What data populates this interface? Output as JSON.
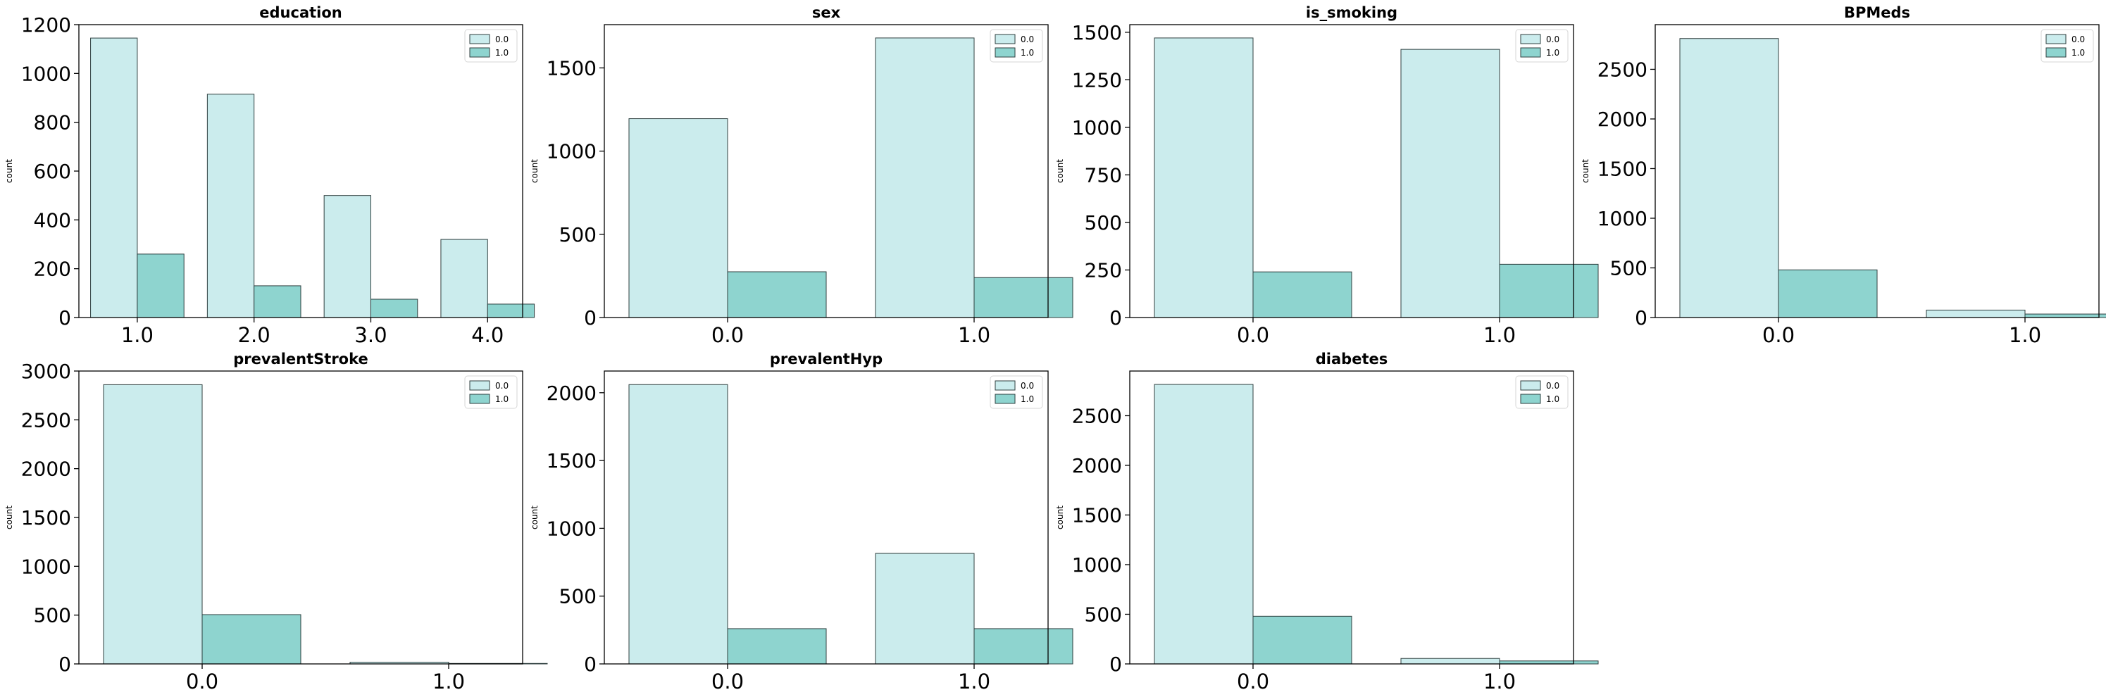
{
  "figure": {
    "colors": {
      "series_0": "#cbeced",
      "series_1": "#8ed4cf",
      "edge": "#2f3f3f"
    }
  },
  "chart_data": [
    {
      "type": "bar",
      "title": "education",
      "ylabel": "count",
      "categories": [
        "1.0",
        "2.0",
        "3.0",
        "4.0"
      ],
      "series": [
        {
          "name": "0.0",
          "values": [
            1145,
            915,
            500,
            320
          ]
        },
        {
          "name": "1.0",
          "values": [
            260,
            130,
            75,
            55
          ]
        }
      ],
      "ylim": [
        0,
        1200
      ],
      "yticks": [
        0,
        200,
        400,
        600,
        800,
        1000,
        1200
      ],
      "legend": "top-right",
      "grid": false
    },
    {
      "type": "bar",
      "title": "sex",
      "ylabel": "count",
      "categories": [
        "0.0",
        "1.0"
      ],
      "series": [
        {
          "name": "0.0",
          "values": [
            1195,
            1680
          ]
        },
        {
          "name": "1.0",
          "values": [
            275,
            240
          ]
        }
      ],
      "ylim": [
        0,
        1760
      ],
      "yticks": [
        0,
        500,
        1000,
        1500
      ],
      "legend": "top-right",
      "grid": false
    },
    {
      "type": "bar",
      "title": "is_smoking",
      "ylabel": "count",
      "categories": [
        "0.0",
        "1.0"
      ],
      "series": [
        {
          "name": "0.0",
          "values": [
            1470,
            1410
          ]
        },
        {
          "name": "1.0",
          "values": [
            240,
            280
          ]
        }
      ],
      "ylim": [
        0,
        1540
      ],
      "yticks": [
        0,
        250,
        500,
        750,
        1000,
        1250,
        1500
      ],
      "legend": "top-right",
      "grid": false
    },
    {
      "type": "bar",
      "title": "BPMeds",
      "ylabel": "count",
      "categories": [
        "0.0",
        "1.0"
      ],
      "series": [
        {
          "name": "0.0",
          "values": [
            2810,
            75
          ]
        },
        {
          "name": "1.0",
          "values": [
            480,
            35
          ]
        }
      ],
      "ylim": [
        0,
        2950
      ],
      "yticks": [
        0,
        500,
        1000,
        1500,
        2000,
        2500
      ],
      "legend": "top-right",
      "grid": false
    },
    {
      "type": "bar",
      "title": "prevalentStroke",
      "ylabel": "count",
      "categories": [
        "0.0",
        "1.0"
      ],
      "series": [
        {
          "name": "0.0",
          "values": [
            2860,
            18
          ]
        },
        {
          "name": "1.0",
          "values": [
            505,
            5
          ]
        }
      ],
      "ylim": [
        0,
        3000
      ],
      "yticks": [
        0,
        500,
        1000,
        1500,
        2000,
        2500,
        3000
      ],
      "legend": "top-right",
      "grid": false
    },
    {
      "type": "bar",
      "title": "prevalentHyp",
      "ylabel": "count",
      "categories": [
        "0.0",
        "1.0"
      ],
      "series": [
        {
          "name": "0.0",
          "values": [
            2060,
            815
          ]
        },
        {
          "name": "1.0",
          "values": [
            260,
            260
          ]
        }
      ],
      "ylim": [
        0,
        2160
      ],
      "yticks": [
        0,
        500,
        1000,
        1500,
        2000
      ],
      "legend": "top-right",
      "grid": false
    },
    {
      "type": "bar",
      "title": "diabetes",
      "ylabel": "count",
      "categories": [
        "0.0",
        "1.0"
      ],
      "series": [
        {
          "name": "0.0",
          "values": [
            2815,
            55
          ]
        },
        {
          "name": "1.0",
          "values": [
            480,
            30
          ]
        }
      ],
      "ylim": [
        0,
        2950
      ],
      "yticks": [
        0,
        500,
        1000,
        1500,
        2000,
        2500
      ],
      "legend": "top-right",
      "grid": false
    }
  ]
}
